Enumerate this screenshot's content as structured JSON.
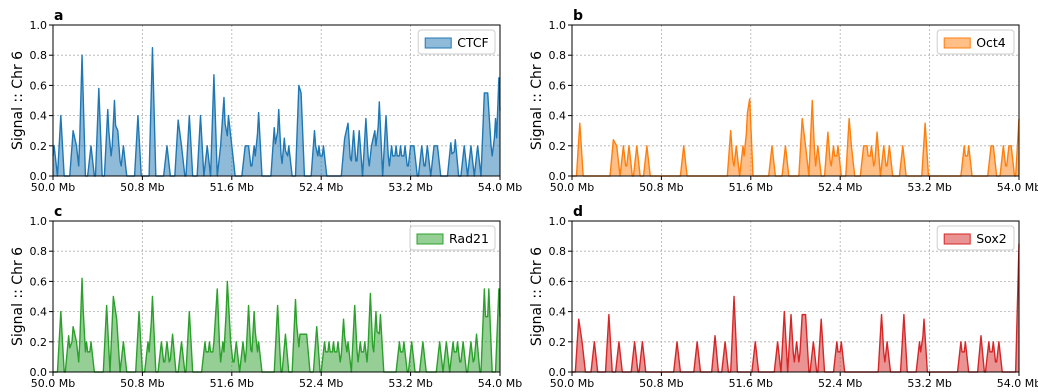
{
  "chart_data": [
    {
      "panel_label": "a",
      "type": "area",
      "series": [
        {
          "name": "CTCF",
          "color": "#1f77b4"
        }
      ],
      "ylabel": "Signal :: Chr 6",
      "xlim": [
        50.0,
        54.0
      ],
      "ylim": [
        0.0,
        1.0
      ],
      "xticks": [
        "50.0 Mb",
        "50.8 Mb",
        "51.6 Mb",
        "52.4 Mb",
        "53.2 Mb",
        "54.0 Mb"
      ],
      "yticks": [
        "0.0",
        "0.2",
        "0.4",
        "0.6",
        "0.8",
        "1.0"
      ],
      "grid": true,
      "legend": "upper right",
      "peaks": [
        [
          50.01,
          0.2
        ],
        [
          50.07,
          0.4
        ],
        [
          50.18,
          0.3
        ],
        [
          50.21,
          0.2
        ],
        [
          50.26,
          0.8
        ],
        [
          50.34,
          0.2
        ],
        [
          50.41,
          0.58
        ],
        [
          50.49,
          0.44
        ],
        [
          50.53,
          0.2
        ],
        [
          50.55,
          0.5
        ],
        [
          50.58,
          0.3
        ],
        [
          50.63,
          0.2
        ],
        [
          50.76,
          0.4
        ],
        [
          50.89,
          0.85
        ],
        [
          51.02,
          0.2
        ],
        [
          51.12,
          0.37
        ],
        [
          51.15,
          0.2
        ],
        [
          51.22,
          0.4
        ],
        [
          51.32,
          0.4
        ],
        [
          51.38,
          0.2
        ],
        [
          51.44,
          0.67
        ],
        [
          51.5,
          0.2
        ],
        [
          51.53,
          0.52
        ],
        [
          51.57,
          0.4
        ],
        [
          51.6,
          0.2
        ],
        [
          51.72,
          0.2
        ],
        [
          51.75,
          0.2
        ],
        [
          51.8,
          0.2
        ],
        [
          51.84,
          0.42
        ],
        [
          51.98,
          0.32
        ],
        [
          52.02,
          0.44
        ],
        [
          52.07,
          0.25
        ],
        [
          52.11,
          0.2
        ],
        [
          52.2,
          0.6
        ],
        [
          52.22,
          0.55
        ],
        [
          52.34,
          0.3
        ],
        [
          52.38,
          0.2
        ],
        [
          52.42,
          0.2
        ],
        [
          52.61,
          0.25
        ],
        [
          52.64,
          0.35
        ],
        [
          52.69,
          0.3
        ],
        [
          52.74,
          0.3
        ],
        [
          52.8,
          0.38
        ],
        [
          52.85,
          0.2
        ],
        [
          52.88,
          0.3
        ],
        [
          52.92,
          0.49
        ],
        [
          52.98,
          0.4
        ],
        [
          53.03,
          0.2
        ],
        [
          53.07,
          0.2
        ],
        [
          53.11,
          0.2
        ],
        [
          53.15,
          0.2
        ],
        [
          53.2,
          0.2
        ],
        [
          53.23,
          0.2
        ],
        [
          53.3,
          0.2
        ],
        [
          53.35,
          0.2
        ],
        [
          53.41,
          0.2
        ],
        [
          53.44,
          0.2
        ],
        [
          53.56,
          0.22
        ],
        [
          53.6,
          0.24
        ],
        [
          53.68,
          0.2
        ],
        [
          53.74,
          0.2
        ],
        [
          53.8,
          0.2
        ],
        [
          53.86,
          0.55
        ],
        [
          53.89,
          0.55
        ],
        [
          53.92,
          0.2
        ],
        [
          53.96,
          0.38
        ],
        [
          53.99,
          0.65
        ],
        [
          54.0,
          0.2
        ]
      ]
    },
    {
      "panel_label": "b",
      "type": "area",
      "series": [
        {
          "name": "Oct4",
          "color": "#ff7f0e"
        }
      ],
      "ylabel": "Signal :: Chr 6",
      "xlim": [
        50.0,
        54.0
      ],
      "ylim": [
        0.0,
        1.0
      ],
      "xticks": [
        "50.0 Mb",
        "50.8 Mb",
        "51.6 Mb",
        "52.4 Mb",
        "53.2 Mb",
        "54.0 Mb"
      ],
      "yticks": [
        "0.0",
        "0.2",
        "0.4",
        "0.6",
        "0.8",
        "1.0"
      ],
      "grid": true,
      "legend": "upper right",
      "peaks": [
        [
          50.07,
          0.35
        ],
        [
          50.37,
          0.24
        ],
        [
          50.4,
          0.2
        ],
        [
          50.46,
          0.2
        ],
        [
          50.51,
          0.2
        ],
        [
          50.58,
          0.2
        ],
        [
          50.67,
          0.2
        ],
        [
          51.0,
          0.2
        ],
        [
          51.42,
          0.3
        ],
        [
          51.47,
          0.2
        ],
        [
          51.53,
          0.2
        ],
        [
          51.57,
          0.42
        ],
        [
          51.59,
          0.51
        ],
        [
          51.79,
          0.2
        ],
        [
          51.91,
          0.2
        ],
        [
          52.06,
          0.38
        ],
        [
          52.09,
          0.2
        ],
        [
          52.15,
          0.5
        ],
        [
          52.2,
          0.2
        ],
        [
          52.29,
          0.29
        ],
        [
          52.34,
          0.2
        ],
        [
          52.38,
          0.2
        ],
        [
          52.48,
          0.38
        ],
        [
          52.5,
          0.2
        ],
        [
          52.61,
          0.2
        ],
        [
          52.64,
          0.2
        ],
        [
          52.68,
          0.2
        ],
        [
          52.73,
          0.29
        ],
        [
          52.79,
          0.2
        ],
        [
          52.84,
          0.2
        ],
        [
          52.96,
          0.2
        ],
        [
          53.16,
          0.35
        ],
        [
          53.51,
          0.2
        ],
        [
          53.55,
          0.2
        ],
        [
          53.75,
          0.2
        ],
        [
          53.77,
          0.2
        ],
        [
          53.86,
          0.2
        ],
        [
          53.91,
          0.2
        ],
        [
          53.93,
          0.2
        ],
        [
          54.0,
          0.38
        ]
      ]
    },
    {
      "panel_label": "c",
      "type": "area",
      "series": [
        {
          "name": "Rad21",
          "color": "#2ca02c"
        }
      ],
      "ylabel": "Signal :: Chr 6",
      "xlim": [
        50.0,
        54.0
      ],
      "ylim": [
        0.0,
        1.0
      ],
      "xticks": [
        "50.0 Mb",
        "50.8 Mb",
        "51.6 Mb",
        "52.4 Mb",
        "53.2 Mb",
        "54.0 Mb"
      ],
      "yticks": [
        "0.0",
        "0.2",
        "0.4",
        "0.6",
        "0.8",
        "1.0"
      ],
      "grid": true,
      "legend": "upper right",
      "peaks": [
        [
          50.07,
          0.4
        ],
        [
          50.14,
          0.24
        ],
        [
          50.18,
          0.3
        ],
        [
          50.21,
          0.2
        ],
        [
          50.26,
          0.62
        ],
        [
          50.3,
          0.2
        ],
        [
          50.34,
          0.2
        ],
        [
          50.48,
          0.44
        ],
        [
          50.54,
          0.5
        ],
        [
          50.57,
          0.35
        ],
        [
          50.63,
          0.2
        ],
        [
          50.77,
          0.4
        ],
        [
          50.85,
          0.2
        ],
        [
          50.89,
          0.5
        ],
        [
          50.97,
          0.2
        ],
        [
          51.02,
          0.2
        ],
        [
          51.07,
          0.25
        ],
        [
          51.15,
          0.2
        ],
        [
          51.22,
          0.4
        ],
        [
          51.36,
          0.2
        ],
        [
          51.4,
          0.2
        ],
        [
          51.44,
          0.2
        ],
        [
          51.47,
          0.55
        ],
        [
          51.52,
          0.2
        ],
        [
          51.56,
          0.6
        ],
        [
          51.59,
          0.2
        ],
        [
          51.64,
          0.2
        ],
        [
          51.7,
          0.2
        ],
        [
          51.75,
          0.44
        ],
        [
          51.8,
          0.4
        ],
        [
          51.84,
          0.2
        ],
        [
          52.01,
          0.44
        ],
        [
          52.08,
          0.25
        ],
        [
          52.17,
          0.48
        ],
        [
          52.21,
          0.25
        ],
        [
          52.24,
          0.25
        ],
        [
          52.27,
          0.25
        ],
        [
          52.36,
          0.3
        ],
        [
          52.43,
          0.2
        ],
        [
          52.47,
          0.2
        ],
        [
          52.51,
          0.2
        ],
        [
          52.55,
          0.2
        ],
        [
          52.6,
          0.35
        ],
        [
          52.64,
          0.2
        ],
        [
          52.7,
          0.44
        ],
        [
          52.75,
          0.2
        ],
        [
          52.79,
          0.2
        ],
        [
          52.84,
          0.52
        ],
        [
          52.89,
          0.4
        ],
        [
          52.93,
          0.38
        ],
        [
          53.1,
          0.2
        ],
        [
          53.14,
          0.2
        ],
        [
          53.21,
          0.2
        ],
        [
          53.31,
          0.2
        ],
        [
          53.46,
          0.2
        ],
        [
          53.52,
          0.2
        ],
        [
          53.58,
          0.2
        ],
        [
          53.62,
          0.2
        ],
        [
          53.67,
          0.2
        ],
        [
          53.74,
          0.2
        ],
        [
          53.79,
          0.25
        ],
        [
          53.86,
          0.55
        ],
        [
          53.9,
          0.55
        ],
        [
          53.99,
          0.55
        ],
        [
          54.0,
          0.2
        ]
      ]
    },
    {
      "panel_label": "d",
      "type": "area",
      "series": [
        {
          "name": "Sox2",
          "color": "#d62728"
        }
      ],
      "ylabel": "Signal :: Chr 6",
      "xlim": [
        50.0,
        54.0
      ],
      "ylim": [
        0.0,
        1.0
      ],
      "xticks": [
        "50.0 Mb",
        "50.8 Mb",
        "51.6 Mb",
        "52.4 Mb",
        "53.2 Mb",
        "54.0 Mb"
      ],
      "yticks": [
        "0.0",
        "0.2",
        "0.4",
        "0.6",
        "0.8",
        "1.0"
      ],
      "grid": true,
      "legend": "upper right",
      "peaks": [
        [
          50.06,
          0.35
        ],
        [
          50.09,
          0.2
        ],
        [
          50.2,
          0.2
        ],
        [
          50.33,
          0.38
        ],
        [
          50.42,
          0.2
        ],
        [
          50.56,
          0.2
        ],
        [
          50.63,
          0.2
        ],
        [
          50.94,
          0.2
        ],
        [
          51.12,
          0.2
        ],
        [
          51.28,
          0.24
        ],
        [
          51.37,
          0.2
        ],
        [
          51.45,
          0.5
        ],
        [
          51.64,
          0.2
        ],
        [
          51.84,
          0.2
        ],
        [
          51.9,
          0.4
        ],
        [
          51.96,
          0.38
        ],
        [
          52.01,
          0.2
        ],
        [
          52.06,
          0.38
        ],
        [
          52.09,
          0.38
        ],
        [
          52.16,
          0.2
        ],
        [
          52.23,
          0.35
        ],
        [
          52.37,
          0.2
        ],
        [
          52.41,
          0.2
        ],
        [
          52.77,
          0.38
        ],
        [
          52.82,
          0.2
        ],
        [
          52.97,
          0.38
        ],
        [
          53.11,
          0.2
        ],
        [
          53.15,
          0.35
        ],
        [
          53.48,
          0.2
        ],
        [
          53.52,
          0.2
        ],
        [
          53.66,
          0.24
        ],
        [
          53.73,
          0.2
        ],
        [
          53.77,
          0.2
        ],
        [
          53.82,
          0.2
        ],
        [
          54.0,
          0.85
        ]
      ]
    }
  ]
}
